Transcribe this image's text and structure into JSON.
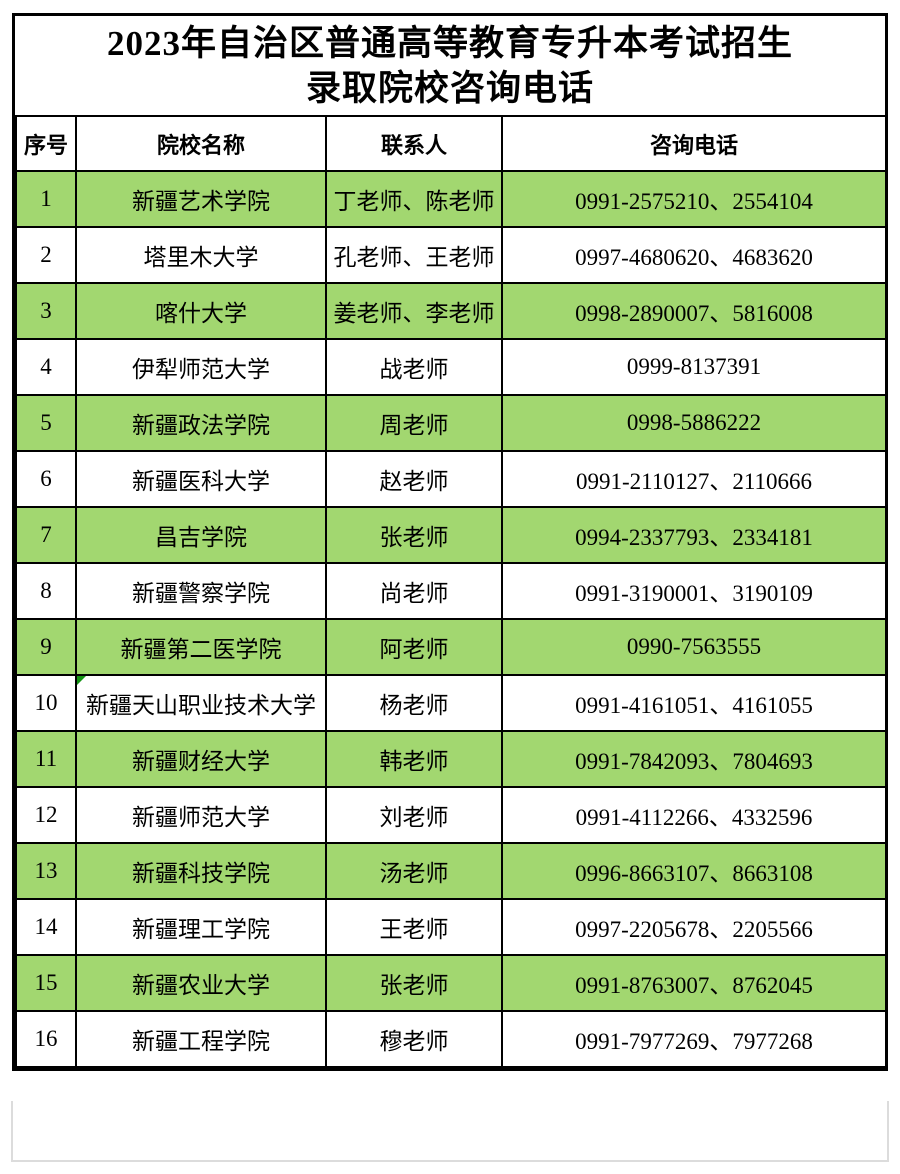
{
  "colors": {
    "highlight_green": "#a2d770",
    "comment_marker_green": "#149414",
    "border_black": "#000000",
    "footer_border_gray": "#dcdcdc",
    "text_black": "#000000",
    "background_white": "#ffffff"
  },
  "title": {
    "line1": "2023年自治区普通高等教育专升本考试招生",
    "line2": "录取院校咨询电话"
  },
  "table": {
    "headers": [
      "序号",
      "院校名称",
      "联系人",
      "咨询电话"
    ],
    "rows": [
      {
        "index": "1",
        "school": "新疆艺术学院",
        "contact": "丁老师、陈老师",
        "phone": "0991-2575210、2554104",
        "highlighted": true,
        "comment_marker": false
      },
      {
        "index": "2",
        "school": "塔里木大学",
        "contact": "孔老师、王老师",
        "phone": "0997-4680620、4683620",
        "highlighted": false,
        "comment_marker": false
      },
      {
        "index": "3",
        "school": "喀什大学",
        "contact": "姜老师、李老师",
        "phone": "0998-2890007、5816008",
        "highlighted": true,
        "comment_marker": false
      },
      {
        "index": "4",
        "school": "伊犁师范大学",
        "contact": "战老师",
        "phone": "0999-8137391",
        "highlighted": false,
        "comment_marker": false
      },
      {
        "index": "5",
        "school": "新疆政法学院",
        "contact": "周老师",
        "phone": "0998-5886222",
        "highlighted": true,
        "comment_marker": false
      },
      {
        "index": "6",
        "school": "新疆医科大学",
        "contact": "赵老师",
        "phone": "0991-2110127、2110666",
        "highlighted": false,
        "comment_marker": false
      },
      {
        "index": "7",
        "school": "昌吉学院",
        "contact": "张老师",
        "phone": "0994-2337793、2334181",
        "highlighted": true,
        "comment_marker": false
      },
      {
        "index": "8",
        "school": "新疆警察学院",
        "contact": "尚老师",
        "phone": "0991-3190001、3190109",
        "highlighted": false,
        "comment_marker": false
      },
      {
        "index": "9",
        "school": "新疆第二医学院",
        "contact": "阿老师",
        "phone": "0990-7563555",
        "highlighted": true,
        "comment_marker": false
      },
      {
        "index": "10",
        "school": "新疆天山职业技术大学",
        "contact": "杨老师",
        "phone": "0991-4161051、4161055",
        "highlighted": false,
        "comment_marker": true
      },
      {
        "index": "11",
        "school": "新疆财经大学",
        "contact": "韩老师",
        "phone": "0991-7842093、7804693",
        "highlighted": true,
        "comment_marker": false
      },
      {
        "index": "12",
        "school": "新疆师范大学",
        "contact": "刘老师",
        "phone": "0991-4112266、4332596",
        "highlighted": false,
        "comment_marker": false
      },
      {
        "index": "13",
        "school": "新疆科技学院",
        "contact": "汤老师",
        "phone": "0996-8663107、8663108",
        "highlighted": true,
        "comment_marker": false
      },
      {
        "index": "14",
        "school": "新疆理工学院",
        "contact": "王老师",
        "phone": "0997-2205678、2205566",
        "highlighted": false,
        "comment_marker": false
      },
      {
        "index": "15",
        "school": "新疆农业大学",
        "contact": "张老师",
        "phone": "0991-8763007、8762045",
        "highlighted": true,
        "comment_marker": false
      },
      {
        "index": "16",
        "school": "新疆工程学院",
        "contact": "穆老师",
        "phone": "0991-7977269、7977268",
        "highlighted": false,
        "comment_marker": false
      }
    ]
  }
}
